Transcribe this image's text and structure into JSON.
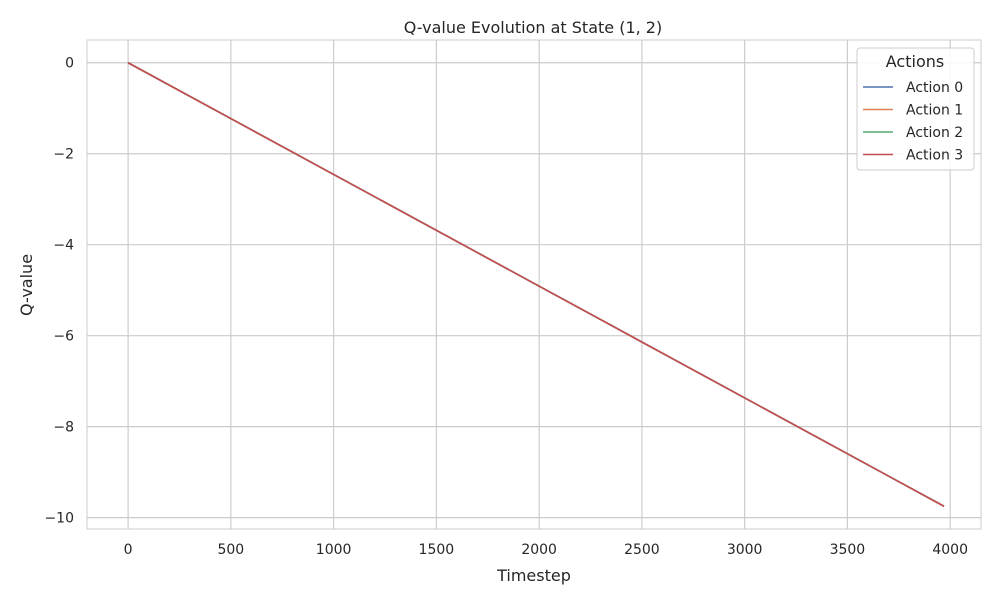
{
  "chart_data": {
    "type": "line",
    "title": "Q-value Evolution at State (1, 2)",
    "xlabel": "Timestep",
    "ylabel": "Q-value",
    "xlim": [
      -200,
      4150
    ],
    "ylim": [
      -10.25,
      0.5
    ],
    "xticks": [
      0,
      500,
      1000,
      1500,
      2000,
      2500,
      3000,
      3500,
      4000
    ],
    "yticks": [
      0,
      -2,
      -4,
      -6,
      -8,
      -10
    ],
    "grid": true,
    "legend": {
      "title": "Actions",
      "position": "top-right"
    },
    "series": [
      {
        "name": "Action 0",
        "color": "#4c72b0",
        "x": [
          0,
          3970
        ],
        "y": [
          0,
          -9.75
        ]
      },
      {
        "name": "Action 1",
        "color": "#dd8452",
        "x": [
          0,
          3970
        ],
        "y": [
          0,
          -9.75
        ]
      },
      {
        "name": "Action 2",
        "color": "#55a868",
        "x": [
          0,
          3970
        ],
        "y": [
          0,
          -9.75
        ]
      },
      {
        "name": "Action 3",
        "color": "#c44e52",
        "x": [
          0,
          3970
        ],
        "y": [
          0,
          -9.75
        ]
      }
    ]
  }
}
